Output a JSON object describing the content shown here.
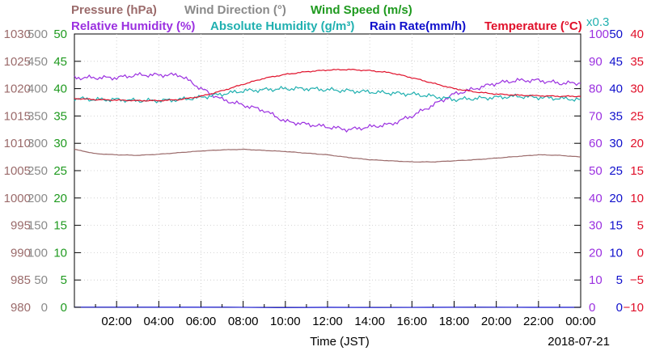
{
  "chart_data": {
    "type": "line",
    "date": "2018-07-21",
    "xlabel": "Time (JST)",
    "x_ticks": [
      "02:00",
      "04:00",
      "06:00",
      "08:00",
      "10:00",
      "12:00",
      "14:00",
      "16:00",
      "18:00",
      "20:00",
      "22:00",
      "00:00"
    ],
    "x_range_hours": [
      0,
      24
    ],
    "legend_row1": [
      {
        "text": "Pressure (hPa)",
        "color": "#9b6b6b"
      },
      {
        "text": "Wind Direction (°)",
        "color": "#8a8a8a"
      },
      {
        "text": "Wind Speed (m/s)",
        "color": "#1f9a1f"
      }
    ],
    "legend_row2": [
      {
        "text": "Relative Humidity (%)",
        "color": "#9b30e0"
      },
      {
        "text": "Absolute Humidity (g/m³)",
        "color": "#20b0b0"
      },
      {
        "text": "Rain Rate(mm/h)",
        "color": "#1010cc"
      },
      {
        "text": "Temperature (°C)",
        "color": "#e0102a"
      }
    ],
    "scale_note": {
      "text": "x0.3",
      "color": "#20b0b0"
    },
    "axes": {
      "pressure": {
        "labels": [
          "980",
          "985",
          "990",
          "995",
          "1000",
          "1005",
          "1010",
          "1015",
          "1020",
          "1025",
          "1030"
        ],
        "range": [
          980,
          1030
        ],
        "color": "#9b6b6b"
      },
      "wind_direction": {
        "labels": [
          "0",
          "50",
          "100",
          "150",
          "200",
          "250",
          "300",
          "350",
          "400",
          "450",
          "500"
        ],
        "range": [
          0,
          500
        ],
        "color": "#8a8a8a"
      },
      "wind_speed": {
        "labels": [
          "0",
          "5",
          "10",
          "15",
          "20",
          "25",
          "30",
          "35",
          "40",
          "45",
          "50"
        ],
        "range": [
          0,
          50
        ],
        "color": "#1f9a1f"
      },
      "humidity": {
        "labels": [
          "0",
          "10",
          "20",
          "30",
          "40",
          "50",
          "60",
          "70",
          "80",
          "90",
          "100"
        ],
        "range": [
          0,
          100
        ],
        "color": "#9b30e0"
      },
      "rain_rate": {
        "labels": [
          "0",
          "5",
          "10",
          "15",
          "20",
          "25",
          "30",
          "35",
          "40",
          "45",
          "50"
        ],
        "range": [
          0,
          50
        ],
        "color": "#1010cc"
      },
      "temperature": {
        "labels": [
          "−10",
          "−5",
          "0",
          "5",
          "10",
          "15",
          "20",
          "25",
          "30",
          "35",
          "40"
        ],
        "range": [
          -10,
          40
        ],
        "color": "#e0102a"
      }
    },
    "series": [
      {
        "name": "Pressure (hPa)",
        "color": "#9b6b6b",
        "axis": "pressure",
        "x": [
          0,
          1,
          2,
          3,
          4,
          5,
          6,
          7,
          8,
          9,
          10,
          11,
          12,
          13,
          14,
          15,
          16,
          17,
          18,
          19,
          20,
          21,
          22,
          23,
          24
        ],
        "values": [
          1008.9,
          1008.1,
          1007.9,
          1007.8,
          1008.0,
          1008.3,
          1008.6,
          1008.8,
          1008.9,
          1008.7,
          1008.5,
          1008.2,
          1007.9,
          1007.4,
          1007.0,
          1006.8,
          1006.6,
          1006.6,
          1006.8,
          1007.0,
          1007.3,
          1007.6,
          1007.9,
          1007.8,
          1007.5
        ]
      },
      {
        "name": "Relative Humidity (%)",
        "color": "#9b30e0",
        "axis": "humidity",
        "x": [
          0,
          1,
          2,
          3,
          4,
          5,
          6,
          7,
          8,
          9,
          10,
          11,
          12,
          13,
          14,
          15,
          16,
          17,
          18,
          19,
          20,
          21,
          22,
          23,
          24
        ],
        "values": [
          84,
          84,
          84,
          85,
          85,
          85,
          80,
          76,
          74,
          72,
          68,
          67,
          66,
          65,
          66,
          67,
          70,
          74,
          78,
          80,
          82,
          83,
          83,
          82,
          82
        ]
      },
      {
        "name": "Absolute Humidity (g/m³)",
        "color": "#20b0b0",
        "axis": "wind_speed",
        "x": [
          0,
          1,
          2,
          3,
          4,
          5,
          6,
          7,
          8,
          9,
          10,
          11,
          12,
          13,
          14,
          15,
          16,
          17,
          18,
          19,
          20,
          21,
          22,
          23,
          24
        ],
        "values": [
          38.2,
          38.0,
          38.0,
          37.8,
          37.8,
          38.0,
          38.4,
          39.0,
          39.6,
          39.8,
          40.0,
          40.0,
          39.8,
          39.6,
          39.4,
          39.2,
          39.0,
          38.6,
          38.0,
          38.2,
          38.4,
          38.6,
          38.4,
          38.2,
          38.0
        ]
      },
      {
        "name": "Rain Rate(mm/h)",
        "color": "#1010cc",
        "axis": "rain_rate",
        "x": [
          0,
          24
        ],
        "values": [
          0,
          0
        ]
      },
      {
        "name": "Temperature (°C)",
        "color": "#e0102a",
        "axis": "temperature",
        "x": [
          0,
          1,
          2,
          3,
          4,
          5,
          6,
          7,
          8,
          9,
          10,
          11,
          12,
          13,
          14,
          15,
          16,
          17,
          18,
          19,
          20,
          21,
          22,
          23,
          24
        ],
        "values": [
          28.2,
          28.0,
          27.9,
          27.8,
          27.8,
          28.0,
          28.6,
          29.6,
          30.8,
          31.9,
          32.6,
          33.1,
          33.4,
          33.5,
          33.3,
          32.9,
          32.0,
          31.0,
          30.0,
          29.4,
          29.0,
          28.8,
          28.7,
          28.6,
          28.6
        ]
      }
    ]
  }
}
